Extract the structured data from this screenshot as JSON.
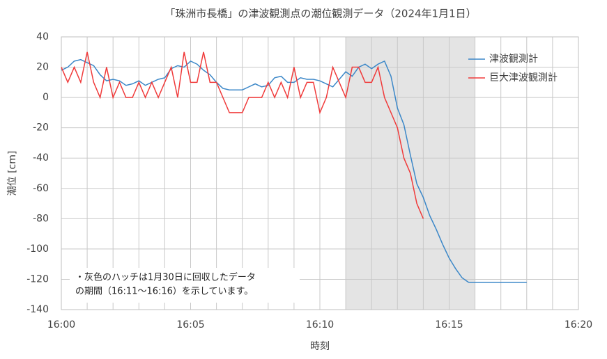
{
  "chart_data": {
    "type": "line",
    "title": "「珠洲市長橋」の津波観測点の潮位観測データ（2024年1月1日）",
    "x_label": "時刻",
    "y_label": "潮位 [cm]",
    "annotation": [
      "・灰色のハッチは1月30日に回収したデータ",
      "の期間（16:11～16:16）を示しています。"
    ],
    "xlim": [
      0,
      20
    ],
    "xticks": [
      {
        "value": 0,
        "label": "16:00"
      },
      {
        "value": 5,
        "label": "16:05"
      },
      {
        "value": 10,
        "label": "16:10"
      },
      {
        "value": 15,
        "label": "16:15"
      },
      {
        "value": 20,
        "label": "16:20"
      }
    ],
    "x_grid": [
      1,
      2,
      3,
      4,
      6,
      7,
      8,
      9,
      11,
      12,
      13,
      14,
      16,
      17,
      18,
      19
    ],
    "shaded_range": [
      11,
      16
    ],
    "shade_color": "#e4e4e4",
    "ylim": [
      -140,
      40
    ],
    "yticks": [
      -140,
      -120,
      -100,
      -80,
      -60,
      -40,
      -20,
      0,
      20,
      40
    ],
    "grid": true,
    "legend": "top-right",
    "series": [
      {
        "name": "津波観測計",
        "color": "#3b87c8",
        "x": [
          0,
          0.25,
          0.5,
          0.75,
          1,
          1.25,
          1.5,
          1.75,
          2,
          2.25,
          2.5,
          2.75,
          3,
          3.25,
          3.5,
          3.75,
          4,
          4.25,
          4.5,
          4.75,
          5,
          5.25,
          5.5,
          5.75,
          6,
          6.25,
          6.5,
          6.75,
          7,
          7.25,
          7.5,
          7.75,
          8,
          8.25,
          8.5,
          8.75,
          9,
          9.25,
          9.5,
          9.75,
          10,
          10.25,
          10.5,
          10.75,
          11,
          11.25,
          11.5,
          11.75,
          12,
          12.25,
          12.5,
          12.75,
          13,
          13.25,
          13.5,
          13.75,
          14,
          14.25,
          14.5,
          14.75,
          15,
          15.25,
          15.5,
          15.75,
          16,
          18
        ],
        "values": [
          18,
          20,
          24,
          25,
          23,
          21,
          15,
          11,
          12,
          11,
          8,
          9,
          11,
          8,
          10,
          12,
          13,
          19,
          21,
          20,
          24,
          22,
          18,
          15,
          10,
          6,
          5,
          5,
          5,
          7,
          9,
          7,
          8,
          13,
          14,
          10,
          10,
          13,
          12,
          12,
          11,
          9,
          7,
          12,
          17,
          14,
          20,
          22,
          19,
          22,
          24,
          14,
          -7,
          -18,
          -38,
          -57,
          -66,
          -78,
          -87,
          -97,
          -106,
          -113,
          -119,
          -122,
          -122,
          -122
        ]
      },
      {
        "name": "巨大津波観測計",
        "color": "#f03a3a",
        "x": [
          0,
          0.25,
          0.5,
          0.75,
          1,
          1.25,
          1.5,
          1.75,
          2,
          2.25,
          2.5,
          2.75,
          3,
          3.25,
          3.5,
          3.75,
          4,
          4.25,
          4.5,
          4.75,
          5,
          5.25,
          5.5,
          5.75,
          6,
          6.25,
          6.5,
          6.75,
          7,
          7.25,
          7.5,
          7.75,
          8,
          8.25,
          8.5,
          8.75,
          9,
          9.25,
          9.5,
          9.75,
          10,
          10.25,
          10.5,
          10.75,
          11,
          11.25,
          11.5,
          11.75,
          12,
          12.25,
          12.5,
          12.75,
          13,
          13.25,
          13.5,
          13.75,
          14
        ],
        "values": [
          20,
          10,
          20,
          10,
          30,
          10,
          0,
          20,
          0,
          10,
          0,
          0,
          10,
          0,
          10,
          0,
          10,
          20,
          0,
          30,
          10,
          10,
          30,
          10,
          10,
          0,
          -10,
          -10,
          -10,
          0,
          0,
          0,
          10,
          0,
          10,
          0,
          20,
          0,
          10,
          10,
          -10,
          0,
          20,
          10,
          0,
          20,
          20,
          10,
          10,
          20,
          0,
          -10,
          -20,
          -40,
          -50,
          -70,
          -80
        ]
      }
    ]
  }
}
